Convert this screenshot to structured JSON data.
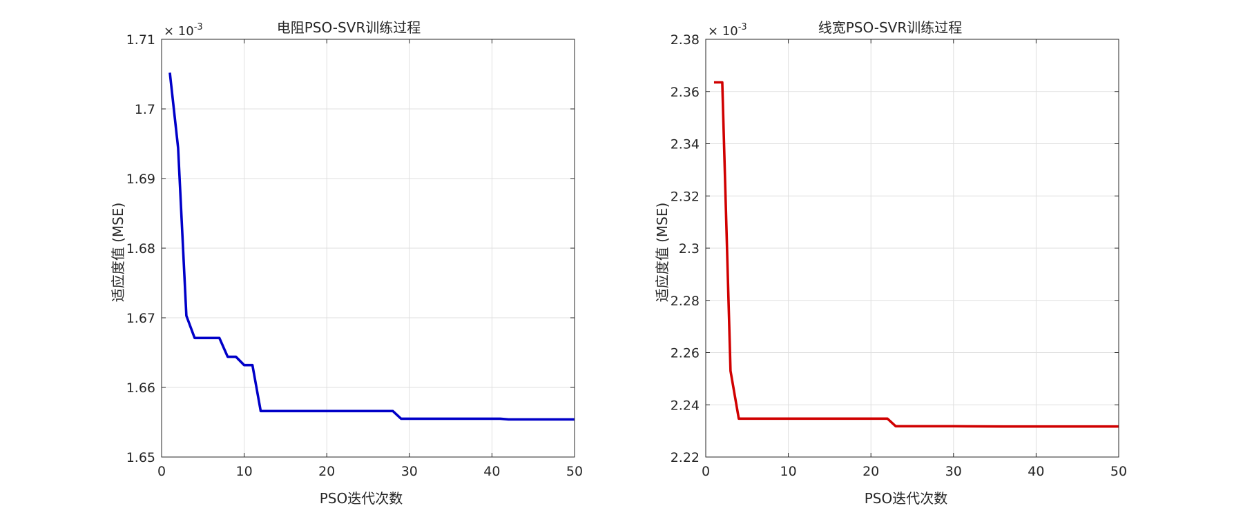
{
  "chart_data": [
    {
      "type": "line",
      "title": "电阻PSO-SVR训练过程",
      "xlabel": "PSO迭代次数",
      "ylabel": "适应度值 (MSE)",
      "y_exponent_base": "× 10",
      "y_exponent_power": "-3",
      "xlim": [
        0,
        50
      ],
      "ylim": [
        1.65,
        1.71
      ],
      "xticks": [
        "0",
        "10",
        "20",
        "30",
        "40",
        "50"
      ],
      "yticks": [
        "1.65",
        "1.66",
        "1.67",
        "1.68",
        "1.69",
        "1.7",
        "1.71"
      ],
      "grid": true,
      "series": [
        {
          "color": "#0000c8",
          "x": [
            1,
            2,
            3,
            4,
            5,
            6,
            7,
            8,
            9,
            10,
            11,
            12,
            13,
            20,
            27,
            28,
            29,
            35,
            41,
            42,
            45,
            48,
            50
          ],
          "y": [
            1.7052,
            1.6944,
            1.6703,
            1.6671,
            1.6671,
            1.6671,
            1.6671,
            1.6644,
            1.6644,
            1.6632,
            1.6632,
            1.6566,
            1.6566,
            1.6566,
            1.6566,
            1.6566,
            1.6555,
            1.6555,
            1.6555,
            1.6554,
            1.6554,
            1.6554,
            1.6554
          ]
        }
      ]
    },
    {
      "type": "line",
      "title": "线宽PSO-SVR训练过程",
      "xlabel": "PSO迭代次数",
      "ylabel": "适应度值 (MSE)",
      "y_exponent_base": "× 10",
      "y_exponent_power": "-3",
      "xlim": [
        0,
        50
      ],
      "ylim": [
        2.22,
        2.38
      ],
      "xticks": [
        "0",
        "10",
        "20",
        "30",
        "40",
        "50"
      ],
      "yticks": [
        "2.22",
        "2.24",
        "2.26",
        "2.28",
        "2.3",
        "2.32",
        "2.34",
        "2.36",
        "2.38"
      ],
      "grid": true,
      "series": [
        {
          "color": "#d00000",
          "x": [
            1,
            2,
            3,
            4,
            5,
            10,
            15,
            20,
            22,
            23,
            30,
            36,
            40,
            45,
            50
          ],
          "y": [
            2.3635,
            2.3635,
            2.253,
            2.2347,
            2.2347,
            2.2347,
            2.2347,
            2.2347,
            2.2347,
            2.2318,
            2.2318,
            2.2317,
            2.2317,
            2.2317,
            2.2317
          ]
        }
      ]
    }
  ]
}
